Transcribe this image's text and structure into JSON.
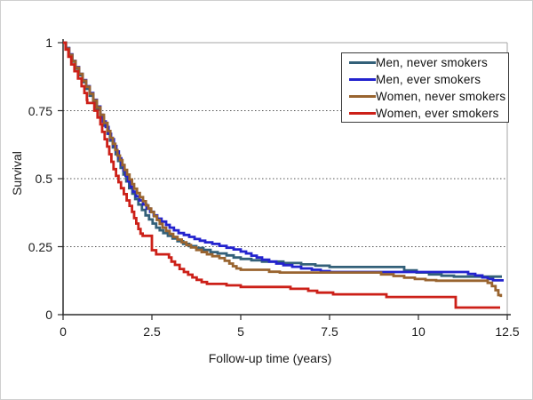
{
  "chart_data": {
    "type": "line",
    "subtype": "step-survival-curve",
    "title": "",
    "xlabel": "Follow-up time (years)",
    "ylabel": "Survival",
    "xlim": [
      0,
      12.5
    ],
    "ylim": [
      0,
      1
    ],
    "grid": "dotted horizontal gridlines at 0.25, 0.5, 0.75; solid light line at 1.0; light right border",
    "legend_position": "top-right",
    "x_ticks": {
      "values": [
        0,
        2.5,
        5,
        7.5,
        10,
        12.5
      ],
      "labels": [
        "0",
        "2.5",
        "5",
        "7.5",
        "10",
        "12.5"
      ]
    },
    "y_ticks": {
      "values": [
        0,
        0.25,
        0.5,
        0.75,
        1
      ],
      "labels": [
        "0",
        "0.25",
        "0.5",
        "0.75",
        "1"
      ]
    },
    "colors": {
      "axis": "#2b2b2b",
      "grid": "#555555",
      "plot_border": "#a6a6a6",
      "text": "#1a1a1a"
    },
    "series": [
      {
        "name": "Men, never smokers",
        "color": "#336079",
        "points": [
          [
            0,
            1.0
          ],
          [
            0.08,
            0.98
          ],
          [
            0.17,
            0.955
          ],
          [
            0.26,
            0.93
          ],
          [
            0.35,
            0.905
          ],
          [
            0.45,
            0.88
          ],
          [
            0.55,
            0.855
          ],
          [
            0.65,
            0.83
          ],
          [
            0.75,
            0.805
          ],
          [
            0.85,
            0.78
          ],
          [
            0.95,
            0.755
          ],
          [
            1.05,
            0.725
          ],
          [
            1.15,
            0.695
          ],
          [
            1.25,
            0.665
          ],
          [
            1.32,
            0.64
          ],
          [
            1.4,
            0.615
          ],
          [
            1.48,
            0.59
          ],
          [
            1.55,
            0.565
          ],
          [
            1.62,
            0.54
          ],
          [
            1.7,
            0.515
          ],
          [
            1.78,
            0.49
          ],
          [
            1.86,
            0.465
          ],
          [
            1.95,
            0.445
          ],
          [
            2.03,
            0.425
          ],
          [
            2.12,
            0.405
          ],
          [
            2.22,
            0.385
          ],
          [
            2.32,
            0.365
          ],
          [
            2.42,
            0.35
          ],
          [
            2.52,
            0.335
          ],
          [
            2.62,
            0.32
          ],
          [
            2.72,
            0.31
          ],
          [
            2.82,
            0.3
          ],
          [
            2.95,
            0.29
          ],
          [
            3.08,
            0.28
          ],
          [
            3.22,
            0.27
          ],
          [
            3.38,
            0.26
          ],
          [
            3.55,
            0.252
          ],
          [
            3.75,
            0.245
          ],
          [
            3.95,
            0.238
          ],
          [
            4.15,
            0.23
          ],
          [
            4.35,
            0.225
          ],
          [
            4.6,
            0.218
          ],
          [
            4.8,
            0.21
          ],
          [
            5.0,
            0.205
          ],
          [
            5.3,
            0.2
          ],
          [
            5.6,
            0.195
          ],
          [
            6.2,
            0.19
          ],
          [
            6.7,
            0.185
          ],
          [
            7.1,
            0.18
          ],
          [
            7.5,
            0.175
          ],
          [
            9.6,
            0.163
          ],
          [
            9.95,
            0.155
          ],
          [
            10.3,
            0.148
          ],
          [
            10.65,
            0.143
          ],
          [
            11.0,
            0.14
          ],
          [
            12.35,
            0.14
          ]
        ]
      },
      {
        "name": "Men, ever smokers",
        "color": "#2323CE",
        "points": [
          [
            0,
            1.0
          ],
          [
            0.08,
            0.98
          ],
          [
            0.17,
            0.957
          ],
          [
            0.26,
            0.933
          ],
          [
            0.35,
            0.91
          ],
          [
            0.45,
            0.885
          ],
          [
            0.55,
            0.862
          ],
          [
            0.65,
            0.84
          ],
          [
            0.75,
            0.815
          ],
          [
            0.85,
            0.79
          ],
          [
            0.95,
            0.765
          ],
          [
            1.05,
            0.735
          ],
          [
            1.12,
            0.71
          ],
          [
            1.2,
            0.69
          ],
          [
            1.28,
            0.665
          ],
          [
            1.35,
            0.645
          ],
          [
            1.43,
            0.62
          ],
          [
            1.5,
            0.6
          ],
          [
            1.57,
            0.575
          ],
          [
            1.64,
            0.55
          ],
          [
            1.7,
            0.53
          ],
          [
            1.76,
            0.51
          ],
          [
            1.83,
            0.49
          ],
          [
            1.9,
            0.47
          ],
          [
            1.97,
            0.452
          ],
          [
            2.05,
            0.435
          ],
          [
            2.15,
            0.42
          ],
          [
            2.25,
            0.405
          ],
          [
            2.35,
            0.39
          ],
          [
            2.45,
            0.378
          ],
          [
            2.55,
            0.365
          ],
          [
            2.65,
            0.353
          ],
          [
            2.77,
            0.342
          ],
          [
            2.9,
            0.33
          ],
          [
            3.0,
            0.32
          ],
          [
            3.12,
            0.31
          ],
          [
            3.25,
            0.3
          ],
          [
            3.4,
            0.293
          ],
          [
            3.55,
            0.286
          ],
          [
            3.7,
            0.278
          ],
          [
            3.85,
            0.272
          ],
          [
            4.0,
            0.266
          ],
          [
            4.2,
            0.26
          ],
          [
            4.4,
            0.253
          ],
          [
            4.6,
            0.246
          ],
          [
            4.8,
            0.24
          ],
          [
            5.0,
            0.232
          ],
          [
            5.15,
            0.225
          ],
          [
            5.3,
            0.217
          ],
          [
            5.45,
            0.21
          ],
          [
            5.6,
            0.202
          ],
          [
            5.8,
            0.195
          ],
          [
            6.0,
            0.188
          ],
          [
            6.2,
            0.182
          ],
          [
            6.45,
            0.176
          ],
          [
            6.7,
            0.17
          ],
          [
            7.0,
            0.165
          ],
          [
            7.25,
            0.16
          ],
          [
            7.5,
            0.157
          ],
          [
            11.4,
            0.15
          ],
          [
            11.6,
            0.144
          ],
          [
            11.8,
            0.137
          ],
          [
            11.95,
            0.131
          ],
          [
            12.1,
            0.126
          ],
          [
            12.4,
            0.126
          ]
        ]
      },
      {
        "name": "Women, never smokers",
        "color": "#99642F",
        "points": [
          [
            0,
            1.0
          ],
          [
            0.08,
            0.978
          ],
          [
            0.17,
            0.955
          ],
          [
            0.26,
            0.932
          ],
          [
            0.35,
            0.908
          ],
          [
            0.45,
            0.885
          ],
          [
            0.55,
            0.86
          ],
          [
            0.65,
            0.838
          ],
          [
            0.75,
            0.812
          ],
          [
            0.85,
            0.788
          ],
          [
            0.95,
            0.762
          ],
          [
            1.05,
            0.735
          ],
          [
            1.15,
            0.705
          ],
          [
            1.25,
            0.675
          ],
          [
            1.33,
            0.65
          ],
          [
            1.4,
            0.628
          ],
          [
            1.47,
            0.605
          ],
          [
            1.53,
            0.585
          ],
          [
            1.6,
            0.568
          ],
          [
            1.67,
            0.55
          ],
          [
            1.73,
            0.532
          ],
          [
            1.8,
            0.515
          ],
          [
            1.87,
            0.497
          ],
          [
            1.94,
            0.48
          ],
          [
            2.0,
            0.463
          ],
          [
            2.08,
            0.447
          ],
          [
            2.16,
            0.432
          ],
          [
            2.25,
            0.417
          ],
          [
            2.33,
            0.402
          ],
          [
            2.4,
            0.39
          ],
          [
            2.48,
            0.377
          ],
          [
            2.56,
            0.362
          ],
          [
            2.64,
            0.348
          ],
          [
            2.72,
            0.334
          ],
          [
            2.8,
            0.32
          ],
          [
            2.9,
            0.308
          ],
          [
            3.0,
            0.297
          ],
          [
            3.1,
            0.286
          ],
          [
            3.22,
            0.276
          ],
          [
            3.34,
            0.266
          ],
          [
            3.47,
            0.256
          ],
          [
            3.6,
            0.247
          ],
          [
            3.75,
            0.238
          ],
          [
            3.9,
            0.23
          ],
          [
            4.05,
            0.222
          ],
          [
            4.2,
            0.215
          ],
          [
            4.4,
            0.208
          ],
          [
            4.55,
            0.198
          ],
          [
            4.68,
            0.188
          ],
          [
            4.78,
            0.178
          ],
          [
            4.88,
            0.17
          ],
          [
            5.0,
            0.165
          ],
          [
            5.8,
            0.158
          ],
          [
            6.1,
            0.155
          ],
          [
            8.95,
            0.148
          ],
          [
            9.3,
            0.142
          ],
          [
            9.6,
            0.136
          ],
          [
            9.9,
            0.131
          ],
          [
            10.2,
            0.127
          ],
          [
            10.5,
            0.125
          ],
          [
            11.95,
            0.117
          ],
          [
            12.07,
            0.105
          ],
          [
            12.17,
            0.09
          ],
          [
            12.25,
            0.072
          ],
          [
            12.32,
            0.065
          ]
        ]
      },
      {
        "name": "Women, ever smokers",
        "color": "#CC2018",
        "points": [
          [
            0,
            1.0
          ],
          [
            0.07,
            0.975
          ],
          [
            0.15,
            0.948
          ],
          [
            0.23,
            0.92
          ],
          [
            0.32,
            0.895
          ],
          [
            0.42,
            0.868
          ],
          [
            0.52,
            0.84
          ],
          [
            0.6,
            0.815
          ],
          [
            0.67,
            0.79
          ],
          [
            0.68,
            0.778
          ],
          [
            0.88,
            0.75
          ],
          [
            0.97,
            0.725
          ],
          [
            1.05,
            0.7
          ],
          [
            1.1,
            0.672
          ],
          [
            1.17,
            0.645
          ],
          [
            1.24,
            0.618
          ],
          [
            1.3,
            0.59
          ],
          [
            1.36,
            0.562
          ],
          [
            1.42,
            0.535
          ],
          [
            1.49,
            0.51
          ],
          [
            1.56,
            0.487
          ],
          [
            1.63,
            0.465
          ],
          [
            1.71,
            0.443
          ],
          [
            1.79,
            0.42
          ],
          [
            1.87,
            0.4
          ],
          [
            1.94,
            0.378
          ],
          [
            2.0,
            0.355
          ],
          [
            2.06,
            0.335
          ],
          [
            2.12,
            0.315
          ],
          [
            2.18,
            0.298
          ],
          [
            2.24,
            0.29
          ],
          [
            2.5,
            0.237
          ],
          [
            2.62,
            0.222
          ],
          [
            2.98,
            0.21
          ],
          [
            3.05,
            0.195
          ],
          [
            3.15,
            0.183
          ],
          [
            3.28,
            0.168
          ],
          [
            3.4,
            0.157
          ],
          [
            3.52,
            0.147
          ],
          [
            3.64,
            0.137
          ],
          [
            3.76,
            0.128
          ],
          [
            3.9,
            0.12
          ],
          [
            4.05,
            0.113
          ],
          [
            4.6,
            0.108
          ],
          [
            5.0,
            0.102
          ],
          [
            6.4,
            0.095
          ],
          [
            6.9,
            0.088
          ],
          [
            7.15,
            0.081
          ],
          [
            7.6,
            0.075
          ],
          [
            9.1,
            0.065
          ],
          [
            11.05,
            0.026
          ],
          [
            12.3,
            0.026
          ]
        ]
      }
    ]
  }
}
